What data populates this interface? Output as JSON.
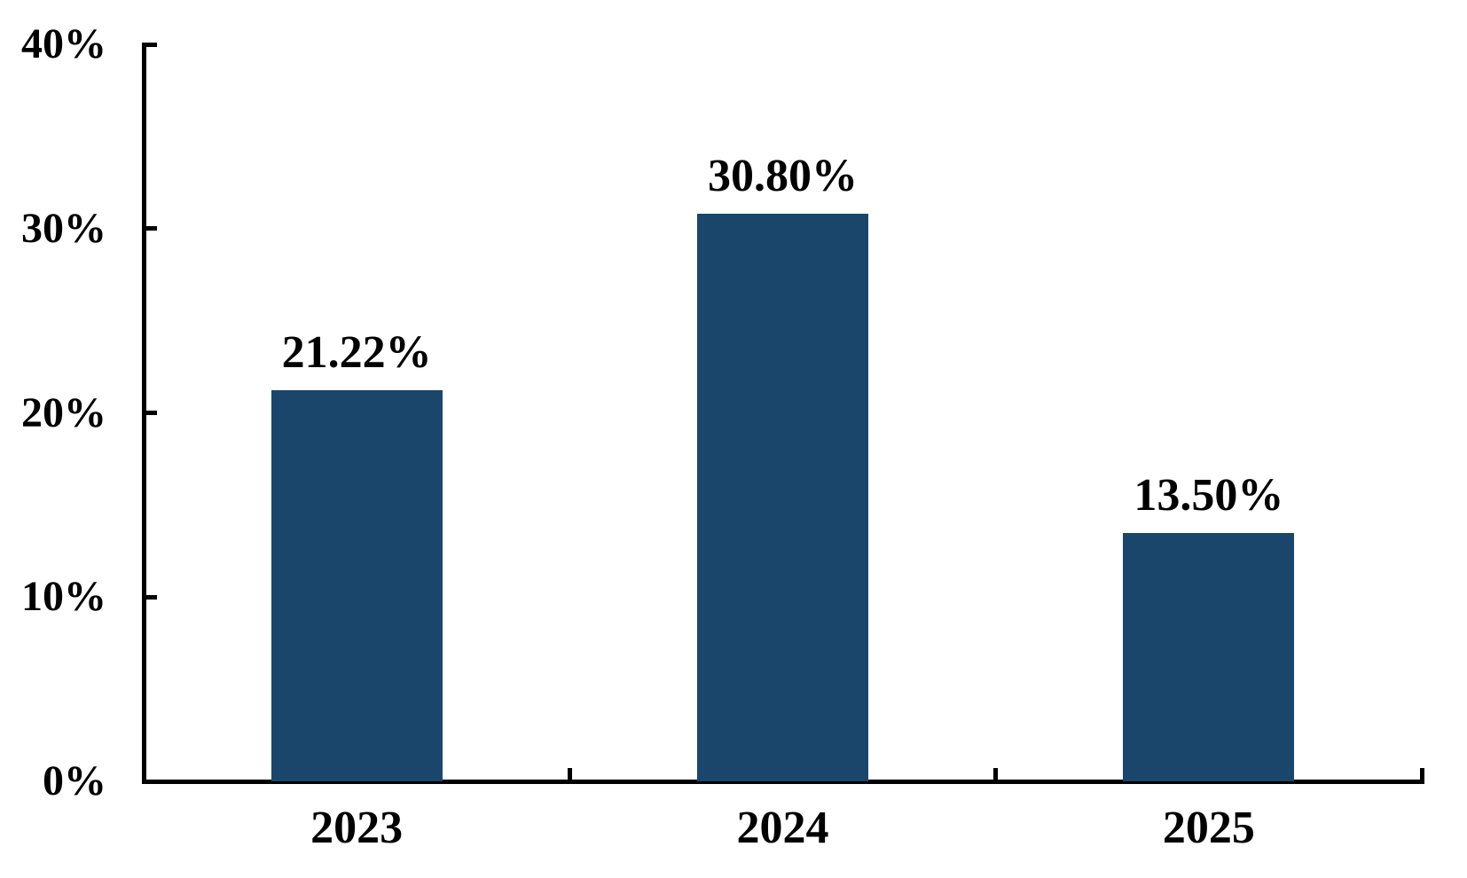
{
  "chart_data": {
    "type": "bar",
    "categories": [
      "2023",
      "2024",
      "2025"
    ],
    "values": [
      21.22,
      30.8,
      13.5
    ],
    "value_labels": [
      "21.22%",
      "30.80%",
      "13.50%"
    ],
    "y_tick_labels": [
      "40%",
      "30%",
      "20%",
      "10%",
      "0%"
    ],
    "title": "",
    "xlabel": "",
    "ylabel": "",
    "ylim": [
      0,
      40
    ],
    "y_tick_step": 10,
    "grid": false,
    "legend": "none",
    "bar_color": "#1B466B",
    "axis_color": "#000000",
    "text_color": "#000000",
    "background_color": "#FFFFFF",
    "tick_direction": "inside"
  }
}
